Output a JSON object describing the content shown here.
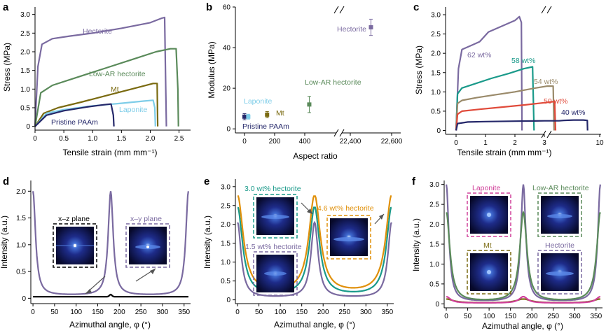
{
  "figure": {
    "panels": [
      "a",
      "b",
      "c",
      "d",
      "e",
      "f"
    ]
  },
  "chart_data": [
    {
      "id": "a",
      "type": "line",
      "xlabel": "Tensile strain (mm mm⁻¹)",
      "ylabel": "Stress (MPa)",
      "xlim": [
        0,
        2.7
      ],
      "ylim": [
        -0.1,
        3.2
      ],
      "xticks": [
        0,
        0.5,
        1,
        1.5,
        2,
        2.5
      ],
      "xtick_labels": [
        "0",
        "0.5",
        "1.0",
        "1.5",
        "2.0",
        "2.5"
      ],
      "yticks": [
        0,
        0.5,
        1,
        1.5,
        2,
        2.5,
        3
      ],
      "ytick_labels": [
        "0",
        "0.5",
        "1.0",
        "1.5",
        "2.0",
        "2.5",
        "3.0"
      ],
      "series": [
        {
          "name": "Hectorite",
          "color": "#7a6aa0",
          "x": [
            0,
            0.05,
            0.12,
            0.3,
            0.6,
            1.0,
            1.5,
            2.0,
            2.2,
            2.25,
            2.27,
            2.28
          ],
          "y": [
            0,
            1.6,
            2.2,
            2.35,
            2.42,
            2.5,
            2.63,
            2.78,
            2.9,
            2.92,
            1.0,
            0
          ]
        },
        {
          "name": "Low-AR hectorite",
          "color": "#5a8a5a",
          "x": [
            0,
            0.1,
            0.3,
            0.7,
            1.2,
            1.7,
            2.1,
            2.35,
            2.45,
            2.48,
            2.49
          ],
          "y": [
            0,
            0.9,
            1.1,
            1.3,
            1.55,
            1.8,
            2.0,
            2.08,
            2.08,
            1.0,
            0
          ]
        },
        {
          "name": "Mt",
          "color": "#7a6a10",
          "x": [
            0,
            0.15,
            0.4,
            0.8,
            1.3,
            1.8,
            2.05,
            2.12,
            2.13
          ],
          "y": [
            0,
            0.35,
            0.5,
            0.65,
            0.85,
            1.05,
            1.15,
            1.15,
            0
          ]
        },
        {
          "name": "Laponite",
          "color": "#7ecde8",
          "x": [
            0,
            0.2,
            0.5,
            1.0,
            1.5,
            1.9,
            2.05,
            2.08,
            2.09
          ],
          "y": [
            0,
            0.35,
            0.45,
            0.55,
            0.62,
            0.68,
            0.7,
            0.5,
            0
          ]
        },
        {
          "name": "Pristine PAAm",
          "color": "#25286a",
          "x": [
            0,
            0.2,
            0.5,
            0.9,
            1.2,
            1.32,
            1.36,
            1.37
          ],
          "y": [
            0,
            0.3,
            0.42,
            0.52,
            0.58,
            0.6,
            0.3,
            0
          ]
        }
      ]
    },
    {
      "id": "b",
      "type": "scatter",
      "xlabel": "Aspect ratio",
      "ylabel": "Modulus (MPa)",
      "ylim": [
        -2,
        60
      ],
      "xticks": [
        "0",
        "200",
        "400",
        "22,400",
        "22,600"
      ],
      "ytick_labels": [
        "0",
        "20",
        "40",
        "60"
      ],
      "points": [
        {
          "name": "Pristine PAAm",
          "x": 0,
          "y": 6,
          "err": 1.5,
          "color": "#25286a"
        },
        {
          "name": "Laponite",
          "x": 25,
          "y": 6,
          "err": 1.2,
          "color": "#7ecde8"
        },
        {
          "name": "Mt",
          "x": 150,
          "y": 7,
          "err": 1.5,
          "color": "#7a6a10"
        },
        {
          "name": "Low-AR hectorite",
          "x": 430,
          "y": 12,
          "err": 4,
          "color": "#5a8a5a"
        },
        {
          "name": "Hectorite",
          "x": 22500,
          "y": 50,
          "err": 4,
          "color": "#7a6aa0"
        }
      ]
    },
    {
      "id": "c",
      "type": "line",
      "xlabel": "Tensile strain (mm mm⁻¹)",
      "ylabel": "Stress (MPa)",
      "ylim": [
        -0.1,
        3.2
      ],
      "xtick_labels": [
        "0",
        "1",
        "2",
        "3",
        "10"
      ],
      "ytick_labels": [
        "0",
        "0.5",
        "1.0",
        "1.5",
        "2.0",
        "2.5",
        "3.0"
      ],
      "series": [
        {
          "name": "62 wt%",
          "color": "#7a6aa0",
          "x": [
            0,
            0.08,
            0.2,
            0.5,
            0.8,
            1.1,
            1.4,
            1.7,
            2.0,
            2.15,
            2.22,
            2.24
          ],
          "y": [
            0,
            1.6,
            2.1,
            2.2,
            2.3,
            2.55,
            2.65,
            2.75,
            2.85,
            2.95,
            2.8,
            0
          ]
        },
        {
          "name": "58 wt%",
          "color": "#1a9a8a",
          "x": [
            0,
            0.05,
            0.2,
            0.6,
            1.2,
            1.8,
            2.3,
            2.6,
            2.65
          ],
          "y": [
            0,
            0.95,
            1.1,
            1.2,
            1.35,
            1.48,
            1.6,
            1.65,
            0
          ]
        },
        {
          "name": "54 wt%",
          "color": "#9a8a6a",
          "x": [
            0,
            0.05,
            0.2,
            0.7,
            1.3,
            2.0,
            2.7,
            3.1,
            3.3,
            3.33
          ],
          "y": [
            0,
            0.7,
            0.78,
            0.85,
            0.92,
            1.0,
            1.1,
            1.15,
            1.15,
            0
          ]
        },
        {
          "name": "50 wt%",
          "color": "#e04a3a",
          "x": [
            0,
            0.05,
            0.2,
            0.8,
            1.5,
            2.3,
            3.0,
            3.35,
            3.38
          ],
          "y": [
            0,
            0.42,
            0.5,
            0.55,
            0.6,
            0.66,
            0.72,
            0.75,
            0
          ]
        },
        {
          "name": "40 wt%",
          "color": "#25286a",
          "x": [
            0,
            0.05,
            0.4,
            1.0,
            2.0,
            3.0,
            3.5,
            4.5,
            6.0,
            7.5,
            8.1,
            8.15
          ],
          "y": [
            0,
            0.18,
            0.22,
            0.23,
            0.24,
            0.25,
            0.25,
            0.26,
            0.27,
            0.27,
            0.26,
            0
          ]
        }
      ]
    },
    {
      "id": "d",
      "type": "line",
      "xlabel": "Azimuthal angle, φ (°)",
      "ylabel": "Intensity (a.u.)",
      "xlim": [
        -5,
        365
      ],
      "ylim": [
        -0.1,
        2.2
      ],
      "xticks": [
        0,
        50,
        100,
        150,
        200,
        250,
        300,
        350
      ],
      "yticks": [
        0,
        0.5,
        1,
        1.5,
        2
      ],
      "ytick_labels": [
        "0",
        "0.5",
        "1.0",
        "1.5",
        "2.0"
      ],
      "series": [
        {
          "name": "x–y plane",
          "color": "#7a6aa0",
          "peaks": {
            "height": 2.0,
            "baseline": 0.05,
            "width": 7
          }
        },
        {
          "name": "x–z plane",
          "color": "#000000",
          "flat": 0.03
        }
      ],
      "insets": [
        "x–z plane",
        "x–y plane"
      ]
    },
    {
      "id": "e",
      "type": "line",
      "xlabel": "Azimuthal angle, φ (°)",
      "ylabel": "Intensity (a.u.)",
      "xlim": [
        -5,
        365
      ],
      "ylim": [
        -0.1,
        3.2
      ],
      "xticks": [
        0,
        50,
        100,
        150,
        200,
        250,
        300,
        350
      ],
      "yticks": [
        0,
        0.5,
        1,
        1.5,
        2,
        2.5,
        3
      ],
      "ytick_labels": [
        "0",
        "0.5",
        "1.0",
        "1.5",
        "2.0",
        "2.5",
        "3.0"
      ],
      "series": [
        {
          "name": "1.5 wt% hectorite",
          "color": "#7a6aa0",
          "peaks": {
            "height": 2.05,
            "baseline": 0.05,
            "width": 10
          }
        },
        {
          "name": "3.0 wt% hectorite",
          "color": "#1a9a8a",
          "peaks": {
            "height": 2.45,
            "baseline": 0.1,
            "width": 14
          }
        },
        {
          "name": "4.6 wt% hectorite",
          "color": "#e0900a",
          "peaks": {
            "height": 2.75,
            "baseline": 0.15,
            "width": 16
          }
        }
      ]
    },
    {
      "id": "f",
      "type": "line",
      "xlabel": "Azimuthal angle, φ (°)",
      "ylabel": "Intensity (a.u.)",
      "xlim": [
        -5,
        365
      ],
      "ylim": [
        -0.1,
        3.1
      ],
      "xticks": [
        0,
        50,
        100,
        150,
        200,
        250,
        300,
        350
      ],
      "yticks": [
        0,
        0.5,
        1,
        1.5,
        2,
        2.5,
        3
      ],
      "ytick_labels": [
        "0",
        "0.5",
        "1.0",
        "1.5",
        "2.0",
        "2.5",
        "3.0"
      ],
      "series": [
        {
          "name": "Hectorite",
          "color": "#7a6aa0",
          "peaks": {
            "height": 3.0,
            "baseline": 0.05,
            "width": 7
          }
        },
        {
          "name": "Low-AR hectorite",
          "color": "#5a8a5a",
          "peaks": {
            "height": 2.3,
            "baseline": 0.05,
            "width": 10
          }
        },
        {
          "name": "Mt",
          "color": "#7a6a10",
          "peaks": {
            "height": 0.12,
            "baseline": 0.02,
            "width": 20
          }
        },
        {
          "name": "Laponite",
          "color": "#d0409a",
          "peaks": {
            "height": 0.18,
            "baseline": 0.02,
            "width": 12
          }
        }
      ],
      "insets": [
        "Laponite",
        "Low-AR hectorite",
        "Mt",
        "Hectorite"
      ]
    }
  ],
  "labels": {
    "a": {
      "hect": "Hectorite",
      "lowar": "Low-AR hectorite",
      "mt": "Mt",
      "lap": "Laponite",
      "paam": "Pristine PAAm"
    },
    "b": {
      "hect": "Hectorite",
      "lowar": "Low-AR hectorite",
      "lap": "Laponite",
      "mt": "Mt",
      "paam": "Pristine PAAm"
    },
    "c": {
      "w62": "62 wt%",
      "w58": "58 wt%",
      "w54": "54 wt%",
      "w50": "50 wt%",
      "w40": "40 wt%"
    },
    "d": {
      "xz": "x–z plane",
      "xy": "x–y plane"
    },
    "e": {
      "h30": "3.0 wt% hectorite",
      "h46": "4.6 wt% hectorite",
      "h15": "1.5 wt% hectorite"
    },
    "f": {
      "lap": "Laponite",
      "lowar": "Low-AR hectorite",
      "mt": "Mt",
      "hect": "Hectorite"
    }
  }
}
